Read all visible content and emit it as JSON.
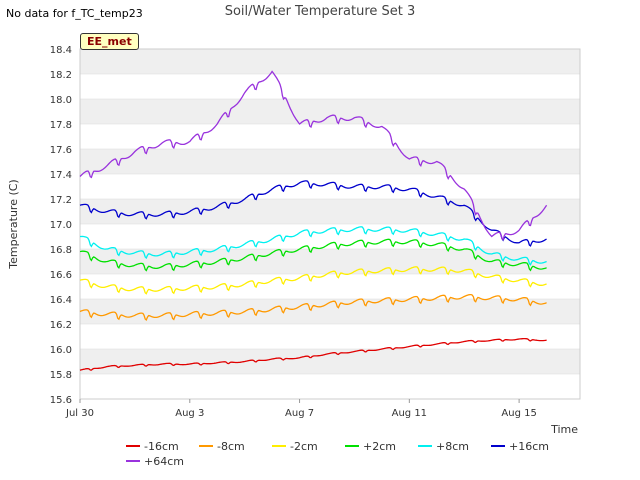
{
  "header": {
    "no_data_text": "No data for f_TC_temp23",
    "badge": "EE_met"
  },
  "colors": {
    "panel_band": "#efefef",
    "grid": "#dddddd"
  },
  "chart_data": {
    "type": "line",
    "title": "Soil/Water Temperature Set 3",
    "xlabel": "Time",
    "ylabel": "Temperature (C)",
    "xlim": [
      "Jul 30",
      "Aug 17"
    ],
    "ylim": [
      15.6,
      18.4
    ],
    "yticks": [
      "15.6",
      "15.8",
      "16.0",
      "16.2",
      "16.4",
      "16.6",
      "16.8",
      "17.0",
      "17.2",
      "17.4",
      "17.6",
      "17.8",
      "18.0",
      "18.2",
      "18.4"
    ],
    "xticks": [
      "Jul 30",
      "Aug 3",
      "Aug 7",
      "Aug 11",
      "Aug 15"
    ],
    "grid": true,
    "legend_position": "bottom",
    "x_dates": [
      "Jul 30",
      "Jul 31",
      "Aug 1",
      "Aug 2",
      "Aug 3",
      "Aug 4",
      "Aug 5",
      "Aug 6",
      "Aug 7",
      "Aug 8",
      "Aug 9",
      "Aug 10",
      "Aug 11",
      "Aug 12",
      "Aug 13",
      "Aug 14",
      "Aug 15",
      "Aug 16",
      "Aug 17"
    ],
    "series": [
      {
        "name": "-16cm",
        "color": "#e00000",
        "values": [
          15.83,
          15.86,
          15.87,
          15.88,
          15.88,
          15.89,
          15.9,
          15.92,
          15.93,
          15.96,
          15.98,
          16.0,
          16.02,
          16.04,
          16.06,
          16.07,
          16.08,
          16.07,
          null
        ]
      },
      {
        "name": "-8cm",
        "color": "#ff9900",
        "values": [
          16.3,
          16.28,
          16.27,
          16.27,
          16.28,
          16.29,
          16.3,
          16.32,
          16.34,
          16.36,
          16.38,
          16.39,
          16.4,
          16.41,
          16.42,
          16.41,
          16.4,
          16.37,
          null
        ]
      },
      {
        "name": "-2cm",
        "color": "#ffee00",
        "values": [
          16.55,
          16.5,
          16.48,
          16.48,
          16.49,
          16.5,
          16.52,
          16.55,
          16.57,
          16.6,
          16.62,
          16.63,
          16.64,
          16.64,
          16.63,
          16.58,
          16.55,
          16.52,
          null
        ]
      },
      {
        "name": "+2cm",
        "color": "#00e000",
        "values": [
          16.78,
          16.7,
          16.67,
          16.66,
          16.68,
          16.7,
          16.73,
          16.77,
          16.8,
          16.83,
          16.85,
          16.86,
          16.86,
          16.84,
          16.8,
          16.7,
          16.68,
          16.65,
          null
        ]
      },
      {
        "name": "+8cm",
        "color": "#00f0f0",
        "values": [
          16.9,
          16.8,
          16.77,
          16.76,
          16.78,
          16.8,
          16.84,
          16.88,
          16.93,
          16.95,
          16.96,
          16.96,
          16.95,
          16.92,
          16.88,
          16.76,
          16.72,
          16.7,
          null
        ]
      },
      {
        "name": "+16cm",
        "color": "#0000cc",
        "values": [
          17.15,
          17.1,
          17.08,
          17.08,
          17.1,
          17.14,
          17.2,
          17.28,
          17.33,
          17.32,
          17.3,
          17.3,
          17.28,
          17.22,
          17.15,
          16.95,
          16.85,
          16.88,
          null
        ]
      },
      {
        "name": "+64cm",
        "color": "#9933dd",
        "values": [
          17.38,
          17.47,
          17.58,
          17.65,
          17.66,
          17.8,
          18.05,
          18.22,
          17.8,
          17.85,
          17.85,
          17.78,
          17.52,
          17.5,
          17.28,
          16.9,
          16.95,
          17.15,
          null
        ]
      }
    ]
  }
}
